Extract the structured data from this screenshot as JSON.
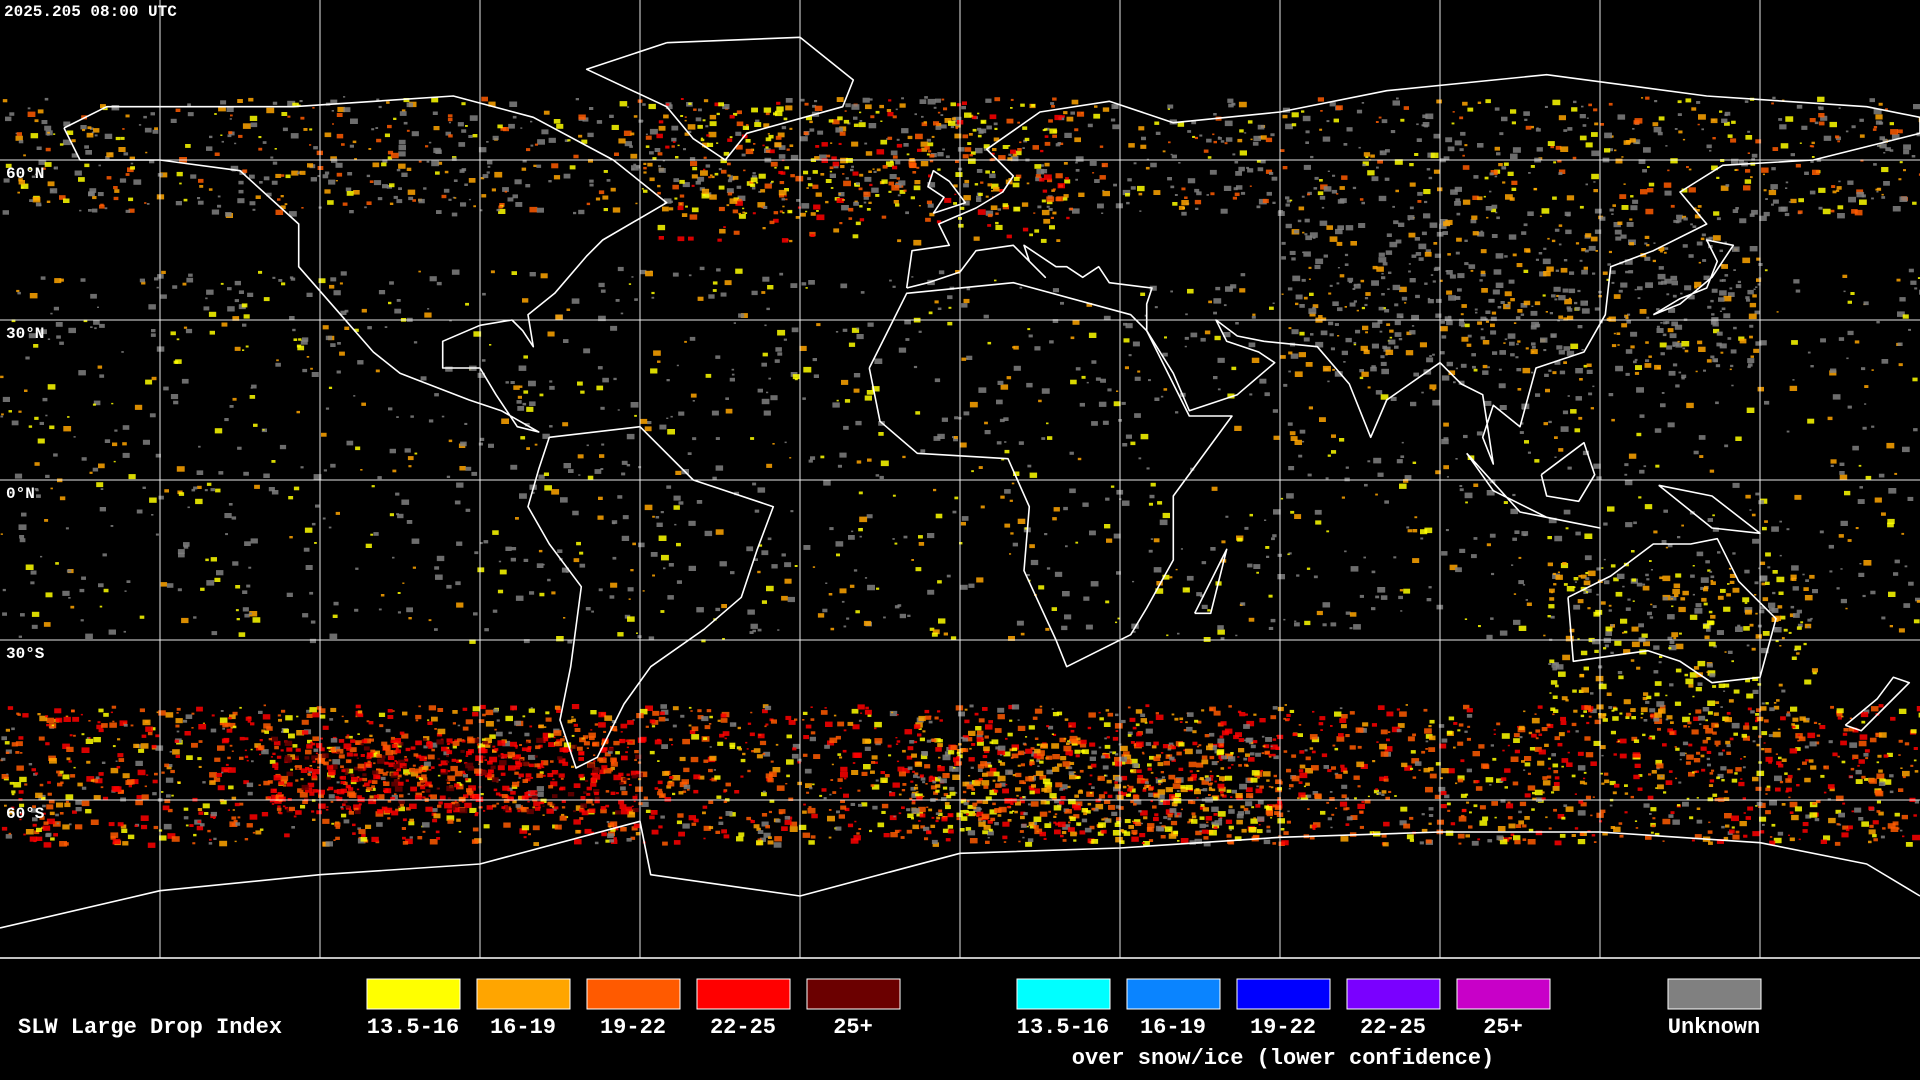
{
  "header": {
    "timestamp": "2025.205 08:00 UTC"
  },
  "map": {
    "latitude_labels": [
      "60°N",
      "30°N",
      "0°N",
      "30°S",
      "60°S"
    ]
  },
  "legend": {
    "title": "SLW Large Drop Index",
    "items": [
      {
        "label": "13.5-16",
        "color": "#ffff00"
      },
      {
        "label": "16-19",
        "color": "#ffa500"
      },
      {
        "label": "19-22",
        "color": "#ff5a00"
      },
      {
        "label": "22-25",
        "color": "#ff0000"
      },
      {
        "label": "25+",
        "color": "#6b0000"
      }
    ],
    "snow_items": [
      {
        "label": "13.5-16",
        "color": "#00ffff"
      },
      {
        "label": "16-19",
        "color": "#0a84ff"
      },
      {
        "label": "19-22",
        "color": "#0000ff"
      },
      {
        "label": "22-25",
        "color": "#7a00ff"
      },
      {
        "label": "25+",
        "color": "#c800c8"
      }
    ],
    "snow_caption": "over snow/ice (lower confidence)",
    "unknown": {
      "label": "Unknown",
      "color": "#808080"
    }
  }
}
